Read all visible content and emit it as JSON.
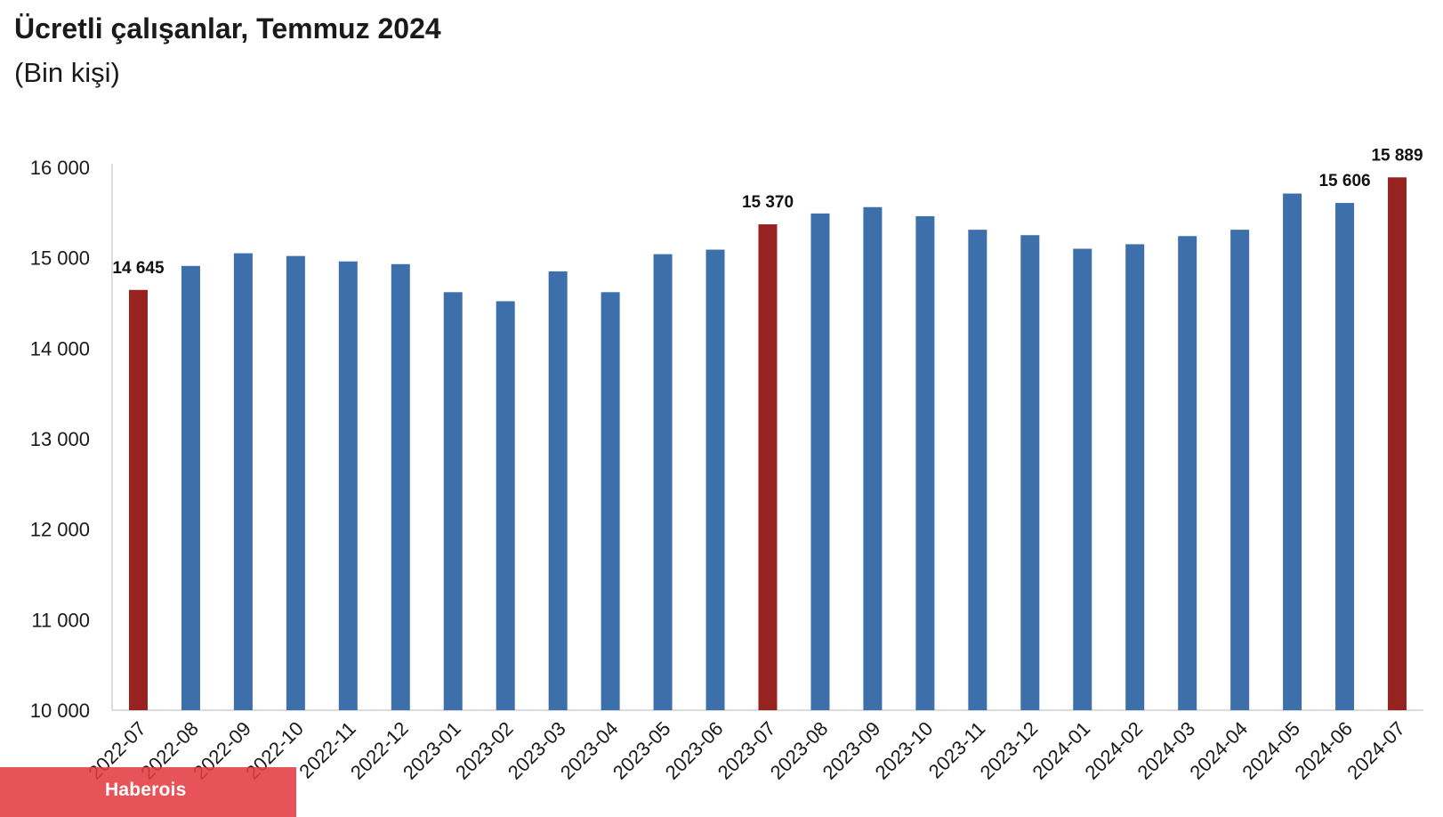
{
  "title": "Ücretli çalışanlar, Temmuz 2024",
  "subtitle": "(Bin kişi)",
  "watermark": "Haberois",
  "colors": {
    "default_bar": "#3d6fab",
    "highlight_bar": "#96231f",
    "axis": "#d0d0d0",
    "text": "#1a1a1a"
  },
  "chart_data": {
    "type": "bar",
    "categories": [
      "2022-07",
      "2022-08",
      "2022-09",
      "2022-10",
      "2022-11",
      "2022-12",
      "2023-01",
      "2023-02",
      "2023-03",
      "2023-04",
      "2023-05",
      "2023-06",
      "2023-07",
      "2023-08",
      "2023-09",
      "2023-10",
      "2023-11",
      "2023-12",
      "2024-01",
      "2024-02",
      "2024-03",
      "2024-04",
      "2024-05",
      "2024-06",
      "2024-07"
    ],
    "values": [
      14645,
      14910,
      15050,
      15020,
      14960,
      14930,
      14620,
      14520,
      14850,
      14620,
      15040,
      15090,
      15370,
      15490,
      15560,
      15460,
      15310,
      15250,
      15100,
      15150,
      15240,
      15310,
      15710,
      15606,
      15889
    ],
    "highlighted": [
      "2022-07",
      "2023-07",
      "2024-07"
    ],
    "data_labels": [
      {
        "category": "2022-07",
        "text": "14 645"
      },
      {
        "category": "2023-07",
        "text": "15 370"
      },
      {
        "category": "2024-06",
        "text": "15 606"
      },
      {
        "category": "2024-07",
        "text": "15 889"
      }
    ],
    "ylim": [
      10000,
      16000
    ],
    "yticks": [
      10000,
      11000,
      12000,
      13000,
      14000,
      15000,
      16000
    ],
    "ytick_labels": [
      "10 000",
      "11 000",
      "12 000",
      "13 000",
      "14 000",
      "15 000",
      "16 000"
    ],
    "xlabel": "",
    "ylabel": "",
    "grid": false,
    "legend": "none"
  }
}
